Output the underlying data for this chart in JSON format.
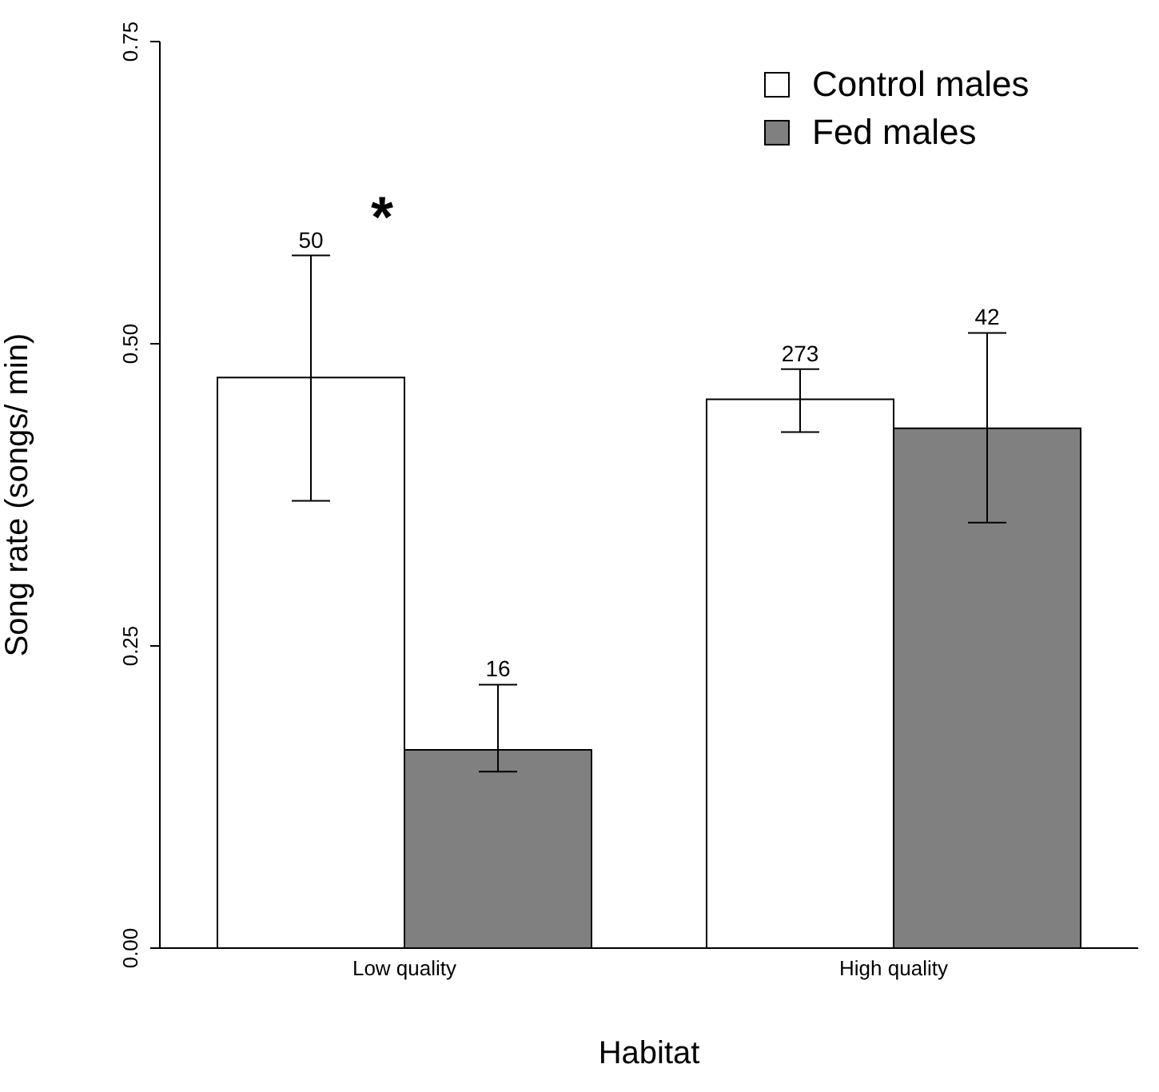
{
  "chart_data": {
    "type": "bar",
    "xlabel": "Habitat",
    "ylabel": "Song rate (songs/ min)",
    "categories": [
      "Low quality",
      "High quality"
    ],
    "series": [
      {
        "name": "Control males",
        "color": "#ffffff",
        "values": [
          0.472,
          0.454
        ],
        "errors": [
          [
            0.37,
            0.573
          ],
          [
            0.427,
            0.479
          ]
        ]
      },
      {
        "name": "Fed males",
        "color": "#808080",
        "values": [
          0.164,
          0.43
        ],
        "errors": [
          [
            0.146,
            0.218
          ],
          [
            0.352,
            0.509
          ]
        ]
      }
    ],
    "ylim": [
      0,
      0.75
    ],
    "yticks": [
      {
        "value": 0,
        "label": "0.00"
      },
      {
        "value": 0.25,
        "label": "0.25"
      },
      {
        "value": 0.5,
        "label": "0.50"
      },
      {
        "value": 0.75,
        "label": "0.75"
      }
    ],
    "annotations": [
      "50",
      "16",
      "273",
      "42",
      "*"
    ],
    "legend": "top right",
    "grid": false
  }
}
